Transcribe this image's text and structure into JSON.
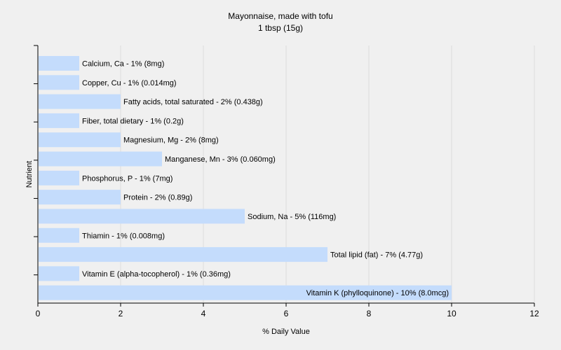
{
  "chart_data": {
    "type": "bar",
    "orientation": "horizontal",
    "title": "Mayonnaise, made with tofu",
    "subtitle": "1 tbsp (15g)",
    "xlabel": "% Daily Value",
    "ylabel": "Nutrient",
    "xlim": [
      0,
      12
    ],
    "xticks": [
      "0",
      "2",
      "4",
      "6",
      "8",
      "10",
      "12"
    ],
    "grid": true,
    "bar_color": "#c4dcfc",
    "categories": [
      "Calcium, Ca",
      "Copper, Cu",
      "Fatty acids, total saturated",
      "Fiber, total dietary",
      "Magnesium, Mg",
      "Manganese, Mn",
      "Phosphorus, P",
      "Protein",
      "Sodium, Na",
      "Thiamin",
      "Total lipid (fat)",
      "Vitamin E (alpha-tocopherol)",
      "Vitamin K (phylloquinone)"
    ],
    "values": [
      1,
      1,
      2,
      1,
      2,
      3,
      1,
      2,
      5,
      1,
      7,
      1,
      10
    ],
    "labels": [
      "Calcium, Ca - 1% (8mg)",
      "Copper, Cu - 1% (0.014mg)",
      "Fatty acids, total saturated - 2% (0.438g)",
      "Fiber, total dietary - 1% (0.2g)",
      "Magnesium, Mg - 2% (8mg)",
      "Manganese, Mn - 3% (0.060mg)",
      "Phosphorus, P - 1% (7mg)",
      "Protein - 2% (0.89g)",
      "Sodium, Na - 5% (116mg)",
      "Thiamin - 1% (0.008mg)",
      "Total lipid (fat) - 7% (4.77g)",
      "Vitamin E (alpha-tocopherol) - 1% (0.36mg)",
      "Vitamin K (phylloquinone) - 10% (8.0mcg)"
    ]
  }
}
